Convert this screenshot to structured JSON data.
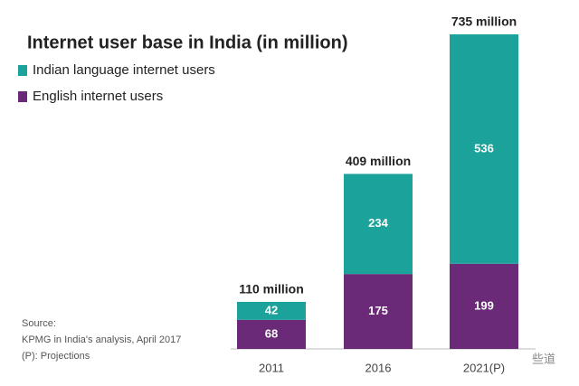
{
  "chart_data": {
    "type": "stacked_bar",
    "title": "Internet user base in India (in million)",
    "categories": [
      "2011",
      "2016",
      "2021(P)"
    ],
    "series": [
      {
        "name": "English internet users",
        "color": "#6a2a78",
        "values": [
          68,
          175,
          199
        ]
      },
      {
        "name": "Indian language internet users",
        "color": "#1ba39b",
        "values": [
          42,
          234,
          536
        ]
      }
    ],
    "totals": {
      "values": [
        110,
        409,
        735
      ],
      "value_labels": [
        "110 million",
        "409 million",
        "735 million"
      ]
    },
    "ylim": [
      0,
      735
    ],
    "source": [
      "Source:",
      "KPMG in India's analysis, April 2017",
      "(P): Projections"
    ],
    "watermark": "些道"
  }
}
